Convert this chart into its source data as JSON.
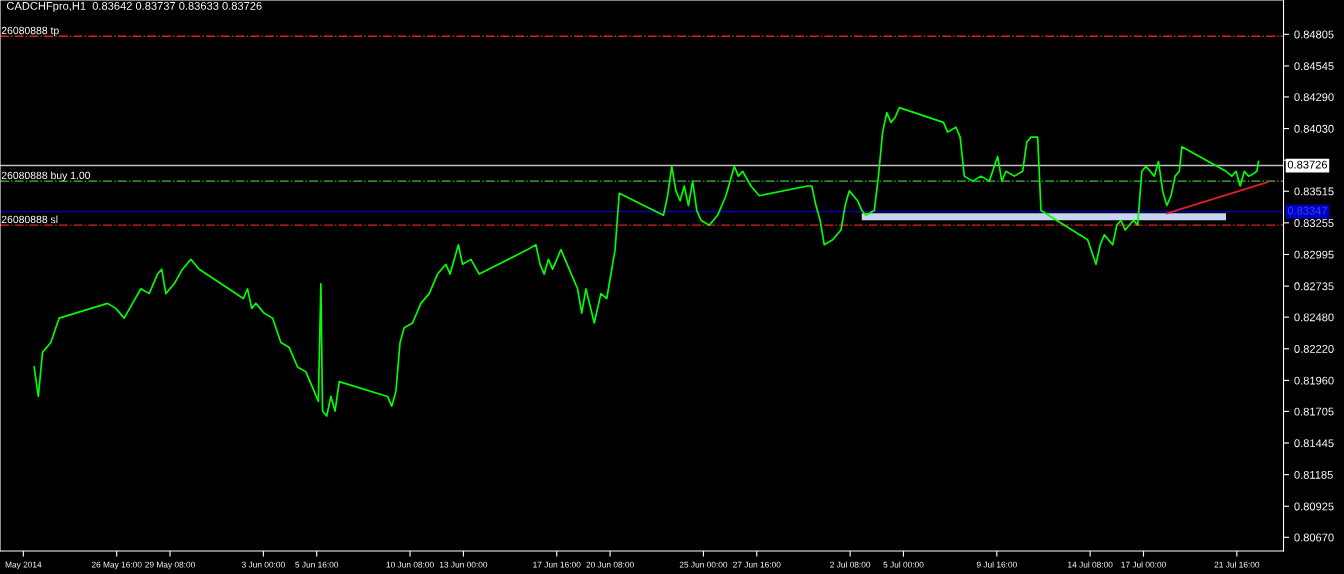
{
  "chart_data": {
    "type": "line",
    "title": "CADCHFpro,H1  0.83642 0.83737 0.83633 0.83726",
    "series": [
      {
        "color": "#00ff00",
        "x": [
          "2014-05-22T13:00",
          "2014-05-22T18:00",
          "2014-05-22T23:00",
          "2014-05-23T09:00",
          "2014-05-23T19:00",
          "2014-05-26T05:00",
          "2014-05-26T15:00",
          "2014-05-27T01:00",
          "2014-05-27T11:00",
          "2014-05-27T21:00",
          "2014-05-28T07:00",
          "2014-05-28T17:00",
          "2014-05-28T22:00",
          "2014-05-29T03:00",
          "2014-05-29T13:00",
          "2014-05-29T23:00",
          "2014-05-30T09:00",
          "2014-05-30T14:00",
          "2014-05-30T19:00",
          "2014-06-02T00:00",
          "2014-06-02T05:00",
          "2014-06-02T10:00",
          "2014-06-02T15:00",
          "2014-06-03T01:00",
          "2014-06-03T11:00",
          "2014-06-03T21:00",
          "2014-06-04T07:00",
          "2014-06-04T17:00",
          "2014-06-05T03:00",
          "2014-06-05T13:00",
          "2014-06-05T18:00",
          "2014-06-05T21:00",
          "2014-06-05T23:00",
          "2014-06-06T04:00",
          "2014-06-06T09:00",
          "2014-06-06T14:00",
          "2014-06-06T19:00",
          "2014-06-09T05:00",
          "2014-06-09T10:00",
          "2014-06-09T15:00",
          "2014-06-09T20:00",
          "2014-06-10T01:00",
          "2014-06-10T11:00",
          "2014-06-10T21:00",
          "2014-06-11T07:00",
          "2014-06-11T17:00",
          "2014-06-12T03:00",
          "2014-06-12T08:00",
          "2014-06-12T18:00",
          "2014-06-12T23:00",
          "2014-06-13T09:00",
          "2014-06-13T19:00",
          "2014-06-16T05:00",
          "2014-06-16T15:00",
          "2014-06-16T20:00",
          "2014-06-17T01:00",
          "2014-06-17T06:00",
          "2014-06-17T11:00",
          "2014-06-17T21:00",
          "2014-06-18T07:00",
          "2014-06-18T17:00",
          "2014-06-18T22:00",
          "2014-06-19T03:00",
          "2014-06-19T13:00",
          "2014-06-19T21:00",
          "2014-06-20T04:00",
          "2014-06-20T14:00",
          "2014-06-20T19:00",
          "2014-06-23T00:00",
          "2014-06-23T05:00",
          "2014-06-23T10:00",
          "2014-06-23T15:00",
          "2014-06-23T20:00",
          "2014-06-24T01:00",
          "2014-06-24T06:00",
          "2014-06-24T11:00",
          "2014-06-24T16:00",
          "2014-06-24T21:00",
          "2014-06-25T07:00",
          "2014-06-25T17:00",
          "2014-06-26T03:00",
          "2014-06-26T13:00",
          "2014-06-26T18:00",
          "2014-06-26T23:00",
          "2014-06-27T09:00",
          "2014-06-27T19:00",
          "2014-06-30T05:00",
          "2014-06-30T10:00",
          "2014-06-30T15:00",
          "2014-06-30T20:00",
          "2014-07-01T01:00",
          "2014-07-01T11:00",
          "2014-07-01T21:00",
          "2014-07-02T02:00",
          "2014-07-02T07:00",
          "2014-07-02T17:00",
          "2014-07-02T22:00",
          "2014-07-03T03:00",
          "2014-07-03T13:00",
          "2014-07-03T18:00",
          "2014-07-03T23:00",
          "2014-07-04T04:00",
          "2014-07-04T09:00",
          "2014-07-04T14:00",
          "2014-07-04T19:00",
          "2014-07-07T00:00",
          "2014-07-07T05:00",
          "2014-07-07T15:00",
          "2014-07-07T20:00",
          "2014-07-08T01:00",
          "2014-07-08T11:00",
          "2014-07-08T21:00",
          "2014-07-09T07:00",
          "2014-07-09T17:00",
          "2014-07-09T22:00",
          "2014-07-10T03:00",
          "2014-07-10T13:00",
          "2014-07-10T23:00",
          "2014-07-11T04:00",
          "2014-07-11T09:00",
          "2014-07-11T17:00",
          "2014-07-11T21:00",
          "2014-07-14T05:00",
          "2014-07-14T15:00",
          "2014-07-14T20:00",
          "2014-07-15T01:00",
          "2014-07-15T11:00",
          "2014-07-15T16:00",
          "2014-07-15T21:00",
          "2014-07-16T02:00",
          "2014-07-16T12:00",
          "2014-07-16T17:00",
          "2014-07-16T22:00",
          "2014-07-17T03:00",
          "2014-07-17T13:00",
          "2014-07-17T18:00",
          "2014-07-17T23:00",
          "2014-07-18T04:00",
          "2014-07-18T09:00",
          "2014-07-18T14:00",
          "2014-07-18T19:00",
          "2014-07-18T22:00",
          "2014-07-21T03:00",
          "2014-07-21T10:00",
          "2014-07-21T15:00",
          "2014-07-21T20:00",
          "2014-07-22T01:00",
          "2014-07-22T06:00",
          "2014-07-22T11:00",
          "2014-07-22T16:00",
          "2014-07-22T18:00"
        ],
        "values": [
          0.8207,
          0.81828,
          0.8219,
          0.82271,
          0.82472,
          0.82593,
          0.82552,
          0.82472,
          0.82593,
          0.82713,
          0.82673,
          0.82834,
          0.82874,
          0.82673,
          0.82754,
          0.82874,
          0.82955,
          0.82914,
          0.82874,
          0.82633,
          0.82713,
          0.82552,
          0.82593,
          0.82512,
          0.82472,
          0.82271,
          0.82231,
          0.8207,
          0.8203,
          0.81869,
          0.81788,
          0.82754,
          0.81708,
          0.81667,
          0.81828,
          0.81708,
          0.8195,
          0.81828,
          0.81748,
          0.81869,
          0.82271,
          0.82392,
          0.82432,
          0.82593,
          0.82673,
          0.82834,
          0.82914,
          0.82834,
          0.83075,
          0.82914,
          0.82955,
          0.82834,
          0.83035,
          0.83075,
          0.82914,
          0.82834,
          0.82955,
          0.82874,
          0.83035,
          0.82874,
          0.82713,
          0.82512,
          0.82713,
          0.82432,
          0.82673,
          0.82633,
          0.83035,
          0.83498,
          0.83317,
          0.83478,
          0.83719,
          0.83518,
          0.83437,
          0.83558,
          0.83397,
          0.83598,
          0.83357,
          0.83276,
          0.83236,
          0.83317,
          0.83478,
          0.83719,
          0.83639,
          0.83679,
          0.83558,
          0.83478,
          0.83558,
          0.83558,
          0.83397,
          0.83276,
          0.83075,
          0.83116,
          0.83196,
          0.83397,
          0.83518,
          0.83437,
          0.83357,
          0.83317,
          0.83357,
          0.83639,
          0.84001,
          0.84161,
          0.84081,
          0.84121,
          0.84202,
          0.84081,
          0.84001,
          0.84041,
          0.8396,
          0.83639,
          0.83598,
          0.83639,
          0.83598,
          0.838,
          0.83598,
          0.83679,
          0.83639,
          0.83679,
          0.8392,
          0.8396,
          0.8396,
          0.83357,
          0.83116,
          0.82914,
          0.83075,
          0.83156,
          0.83075,
          0.83236,
          0.83276,
          0.83196,
          0.83276,
          0.83236,
          0.83679,
          0.83719,
          0.83639,
          0.83759,
          0.83518,
          0.83397,
          0.83478,
          0.83639,
          0.83679,
          0.8388,
          0.83679,
          0.83639,
          0.83679,
          0.83558,
          0.83679,
          0.83639,
          0.83655,
          0.83679,
          0.83759
        ]
      },
      {
        "color": "#e02020",
        "x": [
          "2014-07-18T04:00",
          "2014-07-23T05:00"
        ],
        "values": [
          0.83333,
          0.8359
        ]
      }
    ],
    "ref_lines": [
      {
        "axis": "y",
        "value": 0.84789,
        "label": "26080888 tp",
        "color": "#e02020",
        "line_style": "dashed"
      },
      {
        "axis": "y",
        "value": 0.83598,
        "label": "26080888 buy 1.00",
        "color": "#40c040",
        "line_style": "dashed"
      },
      {
        "axis": "y",
        "value": 0.83236,
        "label": "26080888 sl",
        "color": "#e02020",
        "line_style": "dashed"
      },
      {
        "axis": "y",
        "value": 0.83726,
        "label": "0.83726",
        "color": "#c0c0c0",
        "line_style": "solid"
      },
      {
        "axis": "y",
        "value": 0.83347,
        "label": "0.83347",
        "color": "#0000c0",
        "line_style": "solid"
      }
    ],
    "xlim": [
      "2014-05-20T20:00",
      "2014-07-24T00:00"
    ],
    "xticks": [
      {
        "value": "2014-05-22T00:00",
        "label": "May 2014"
      },
      {
        "value": "2014-05-26T16:00",
        "label": "26 May 16:00"
      },
      {
        "value": "2014-05-29T08:00",
        "label": "29 May 08:00"
      },
      {
        "value": "2014-06-03T00:00",
        "label": "3 Jun 00:00"
      },
      {
        "value": "2014-06-05T16:00",
        "label": "5 Jun 16:00"
      },
      {
        "value": "2014-06-10T08:00",
        "label": "10 Jun 08:00"
      },
      {
        "value": "2014-06-13T00:00",
        "label": "13 Jun 00:00"
      },
      {
        "value": "2014-06-17T16:00",
        "label": "17 Jun 16:00"
      },
      {
        "value": "2014-06-20T08:00",
        "label": "20 Jun 08:00"
      },
      {
        "value": "2014-06-25T00:00",
        "label": "25 Jun 00:00"
      },
      {
        "value": "2014-06-27T16:00",
        "label": "27 Jun 16:00"
      },
      {
        "value": "2014-07-02T08:00",
        "label": "2 Jul 08:00"
      },
      {
        "value": "2014-07-05T00:00",
        "label": "5 Jul 00:00"
      },
      {
        "value": "2014-07-09T16:00",
        "label": "9 Jul 16:00"
      },
      {
        "value": "2014-07-14T08:00",
        "label": "14 Jul 08:00"
      },
      {
        "value": "2014-07-17T00:00",
        "label": "17 Jul 00:00"
      },
      {
        "value": "2014-07-21T16:00",
        "label": "21 Jul 16:00"
      }
    ],
    "ylim": [
      0.80557,
      0.85087
    ],
    "yticks": [
      0.84805,
      0.84545,
      {
        "value": 0.8429,
        "label": "0.84290"
      },
      {
        "value": 0.8403,
        "label": "0.84030"
      },
      {
        "value": 0.8377,
        "label": null
      },
      0.83515,
      0.83255,
      0.82995,
      0.82735,
      {
        "value": 0.8248,
        "label": "0.82480"
      },
      {
        "value": 0.8222,
        "label": "0.82220"
      },
      {
        "value": 0.8196,
        "label": "0.81960"
      },
      0.81705,
      0.81445,
      0.81185,
      0.80925,
      {
        "value": 0.8067,
        "label": "0.80670"
      }
    ],
    "grid": false,
    "legend": false,
    "line_style": "solid",
    "marker": "none"
  }
}
